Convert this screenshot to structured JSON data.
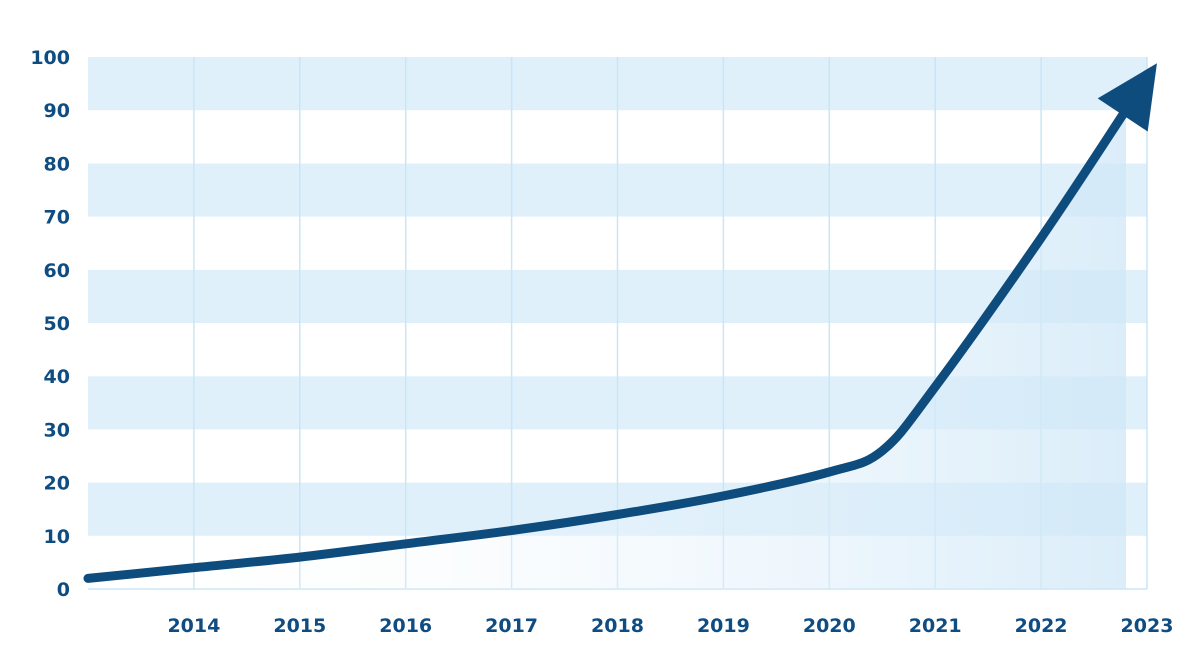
{
  "chart_data": {
    "type": "line",
    "title": "",
    "xlabel": "",
    "ylabel": "",
    "x_ticks": [
      "2014",
      "2015",
      "2016",
      "2017",
      "2018",
      "2019",
      "2020",
      "2021",
      "2022",
      "2023"
    ],
    "y_ticks": [
      "0",
      "10",
      "20",
      "30",
      "40",
      "50",
      "60",
      "70",
      "80",
      "90",
      "100"
    ],
    "xlim": [
      2013,
      2023
    ],
    "ylim": [
      0,
      100
    ],
    "grid": true,
    "series": [
      {
        "x": [
          2013,
          2014,
          2015,
          2016,
          2017,
          2018,
          2019,
          2020,
          2020.5,
          2021,
          2022,
          2023
        ],
        "y": [
          2,
          4,
          6,
          8.5,
          11,
          14,
          17.5,
          22,
          26,
          38,
          66,
          96
        ]
      }
    ],
    "colors": {
      "line": "#0e4c7e",
      "tick_text": "#0f4c81",
      "band": "#dff0fb",
      "gridline": "#c9e6f6",
      "area_fill": "#cfe7f7"
    }
  }
}
